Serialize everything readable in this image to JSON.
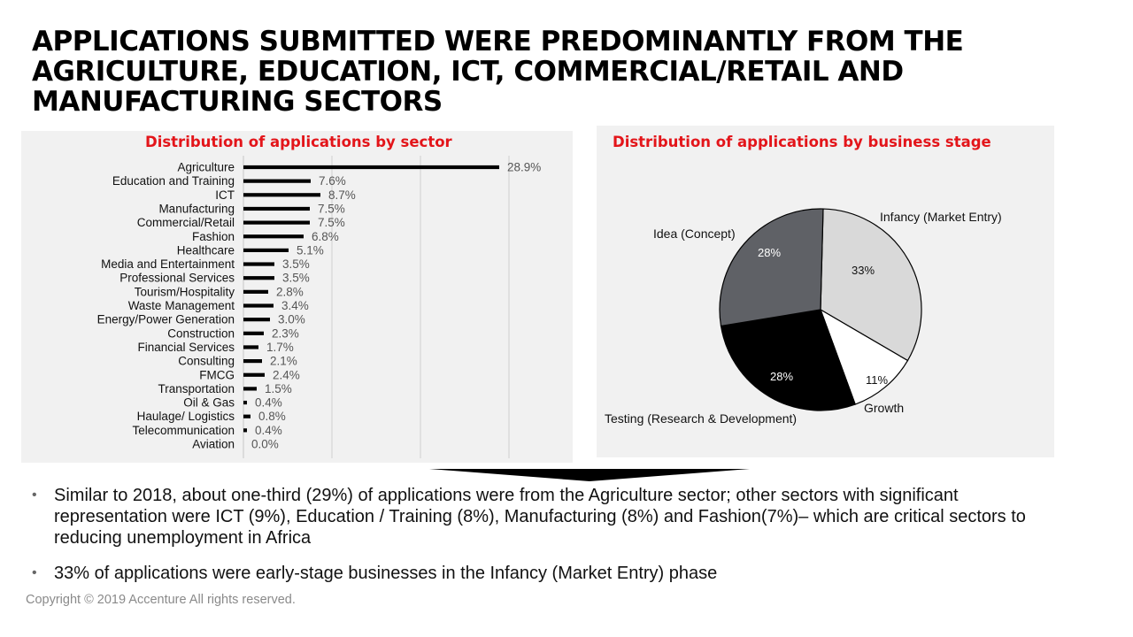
{
  "title": "APPLICATIONS SUBMITTED WERE PREDOMINANTLY FROM THE AGRICULTURE, EDUCATION, ICT, COMMERCIAL/RETAIL AND MANUFACTURING SECTORS",
  "chart_data": [
    {
      "type": "bar",
      "orientation": "horizontal",
      "title": "Distribution of applications by sector",
      "categories": [
        "Agriculture",
        "Education and Training",
        "ICT",
        "Manufacturing",
        "Commercial/Retail",
        "Fashion",
        "Healthcare",
        "Media and Entertainment",
        "Professional Services",
        "Tourism/Hospitality",
        "Waste Management",
        "Energy/Power Generation",
        "Construction",
        "Financial Services",
        "Consulting",
        "FMCG",
        "Transportation",
        "Oil & Gas",
        "Haulage/ Logistics",
        "Telecommunication",
        "Aviation"
      ],
      "values": [
        28.9,
        7.6,
        8.7,
        7.5,
        7.5,
        6.8,
        5.1,
        3.5,
        3.5,
        2.8,
        3.4,
        3.0,
        2.3,
        1.7,
        2.1,
        2.4,
        1.5,
        0.4,
        0.8,
        0.4,
        0.0
      ],
      "value_labels": [
        "28.9%",
        "7.6%",
        "8.7%",
        "7.5%",
        "7.5%",
        "6.8%",
        "5.1%",
        "3.5%",
        "3.5%",
        "2.8%",
        "3.4%",
        "3.0%",
        "2.3%",
        "1.7%",
        "2.1%",
        "2.4%",
        "1.5%",
        "0.4%",
        "0.8%",
        "0.4%",
        "0.0%"
      ],
      "xlim": [
        0,
        40
      ],
      "grid": true,
      "bar_color": "#000000"
    },
    {
      "type": "pie",
      "title": "Distribution of applications by business stage",
      "slices": [
        {
          "label": "Infancy (Market Entry)",
          "value": 33,
          "value_label": "33%",
          "color": "#d9d9d9"
        },
        {
          "label": "Growth",
          "value": 11,
          "value_label": "11%",
          "color": "#ffffff"
        },
        {
          "label": "Testing (Research & Development)",
          "value": 28,
          "value_label": "28%",
          "color": "#000000"
        },
        {
          "label": "Idea (Concept)",
          "value": 28,
          "value_label": "28%",
          "color": "#5f6166"
        }
      ]
    }
  ],
  "bullets": [
    "Similar to 2018, about one-third (29%) of applications were from the Agriculture sector; other sectors with significant  representation were ICT (9%), Education / Training (8%), Manufacturing (8%) and Fashion(7%)– which are critical sectors to reducing unemployment in Africa",
    "33% of applications were early-stage businesses in the Infancy (Market Entry) phase"
  ],
  "bullet_symbol": "•",
  "copyright": "Copyright © 2019 Accenture  All rights reserved."
}
